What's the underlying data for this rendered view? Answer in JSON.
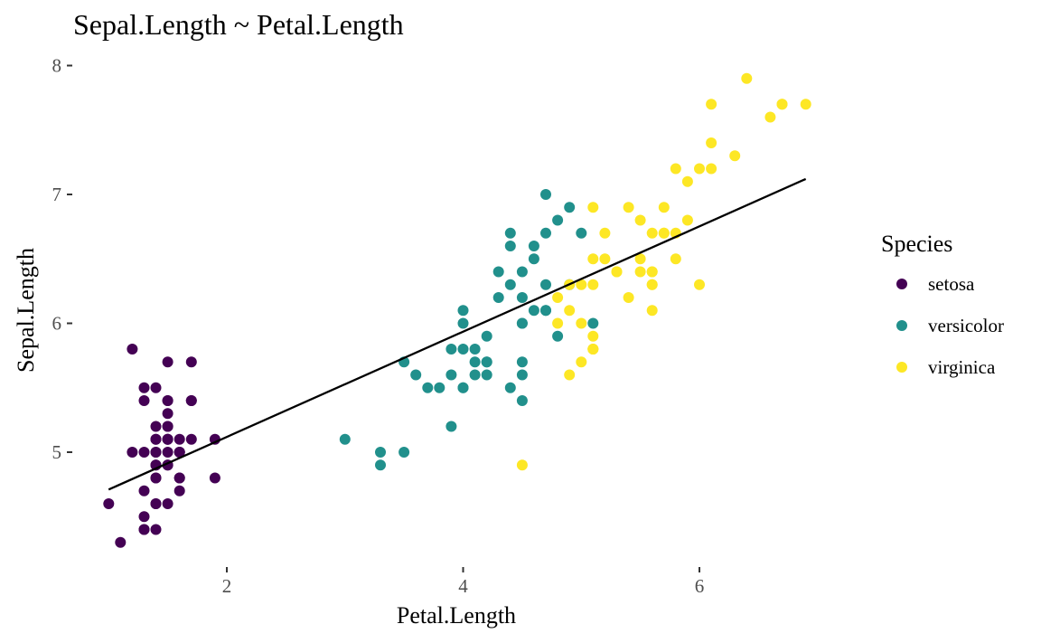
{
  "chart_data": {
    "type": "scatter",
    "title": "Sepal.Length ~ Petal.Length",
    "xlabel": "Petal.Length",
    "ylabel": "Sepal.Length",
    "xticks": [
      2,
      4,
      6
    ],
    "yticks": [
      5,
      6,
      7,
      8
    ],
    "grid": false,
    "legend": {
      "title": "Species",
      "position": "right",
      "entries": [
        {
          "name": "setosa",
          "color": "#440154"
        },
        {
          "name": "versicolor",
          "color": "#21908C"
        },
        {
          "name": "virginica",
          "color": "#FDE725"
        }
      ]
    },
    "series": [
      {
        "name": "setosa",
        "color": "#440154",
        "points": [
          [
            1.4,
            5.1
          ],
          [
            1.4,
            4.9
          ],
          [
            1.3,
            4.7
          ],
          [
            1.5,
            4.6
          ],
          [
            1.4,
            5.0
          ],
          [
            1.7,
            5.4
          ],
          [
            1.4,
            4.6
          ],
          [
            1.5,
            5.0
          ],
          [
            1.4,
            4.4
          ],
          [
            1.5,
            4.9
          ],
          [
            1.5,
            5.4
          ],
          [
            1.6,
            4.8
          ],
          [
            1.4,
            4.8
          ],
          [
            1.1,
            4.3
          ],
          [
            1.2,
            5.8
          ],
          [
            1.5,
            5.7
          ],
          [
            1.3,
            5.4
          ],
          [
            1.4,
            5.1
          ],
          [
            1.7,
            5.7
          ],
          [
            1.5,
            5.1
          ],
          [
            1.7,
            5.4
          ],
          [
            1.5,
            5.1
          ],
          [
            1.0,
            4.6
          ],
          [
            1.7,
            5.1
          ],
          [
            1.9,
            4.8
          ],
          [
            1.6,
            5.0
          ],
          [
            1.6,
            5.0
          ],
          [
            1.5,
            5.2
          ],
          [
            1.4,
            5.2
          ],
          [
            1.6,
            4.7
          ],
          [
            1.6,
            4.8
          ],
          [
            1.5,
            5.4
          ],
          [
            1.5,
            5.2
          ],
          [
            1.4,
            5.5
          ],
          [
            1.5,
            4.9
          ],
          [
            1.2,
            5.0
          ],
          [
            1.3,
            5.5
          ],
          [
            1.4,
            4.9
          ],
          [
            1.3,
            4.4
          ],
          [
            1.5,
            5.1
          ],
          [
            1.3,
            5.0
          ],
          [
            1.3,
            4.5
          ],
          [
            1.3,
            4.4
          ],
          [
            1.6,
            5.0
          ],
          [
            1.9,
            5.1
          ],
          [
            1.4,
            4.8
          ],
          [
            1.6,
            5.1
          ],
          [
            1.4,
            4.6
          ],
          [
            1.5,
            5.3
          ],
          [
            1.4,
            5.0
          ]
        ]
      },
      {
        "name": "versicolor",
        "color": "#21908C",
        "points": [
          [
            4.7,
            7.0
          ],
          [
            4.5,
            6.4
          ],
          [
            4.9,
            6.9
          ],
          [
            4.0,
            5.5
          ],
          [
            4.6,
            6.5
          ],
          [
            4.5,
            5.7
          ],
          [
            4.7,
            6.3
          ],
          [
            3.3,
            4.9
          ],
          [
            4.6,
            6.6
          ],
          [
            3.9,
            5.2
          ],
          [
            3.5,
            5.0
          ],
          [
            4.2,
            5.9
          ],
          [
            4.0,
            6.0
          ],
          [
            4.7,
            6.1
          ],
          [
            3.6,
            5.6
          ],
          [
            4.4,
            6.7
          ],
          [
            4.5,
            5.6
          ],
          [
            4.1,
            5.8
          ],
          [
            4.5,
            6.2
          ],
          [
            3.9,
            5.6
          ],
          [
            4.8,
            5.9
          ],
          [
            4.0,
            6.1
          ],
          [
            4.9,
            6.3
          ],
          [
            4.7,
            6.1
          ],
          [
            4.3,
            6.4
          ],
          [
            4.4,
            6.6
          ],
          [
            4.8,
            6.8
          ],
          [
            5.0,
            6.7
          ],
          [
            4.5,
            6.0
          ],
          [
            3.5,
            5.7
          ],
          [
            3.8,
            5.5
          ],
          [
            3.7,
            5.5
          ],
          [
            3.9,
            5.8
          ],
          [
            5.1,
            6.0
          ],
          [
            4.5,
            5.4
          ],
          [
            4.5,
            6.0
          ],
          [
            4.7,
            6.7
          ],
          [
            4.4,
            6.3
          ],
          [
            4.1,
            5.6
          ],
          [
            4.0,
            5.5
          ],
          [
            4.4,
            5.5
          ],
          [
            4.6,
            6.1
          ],
          [
            4.0,
            5.8
          ],
          [
            3.3,
            5.0
          ],
          [
            4.2,
            5.6
          ],
          [
            4.2,
            5.7
          ],
          [
            4.2,
            5.7
          ],
          [
            4.3,
            6.2
          ],
          [
            3.0,
            5.1
          ],
          [
            4.1,
            5.7
          ]
        ]
      },
      {
        "name": "virginica",
        "color": "#FDE725",
        "points": [
          [
            6.0,
            6.3
          ],
          [
            5.1,
            5.8
          ],
          [
            5.9,
            7.1
          ],
          [
            5.6,
            6.3
          ],
          [
            5.8,
            6.5
          ],
          [
            6.6,
            7.6
          ],
          [
            4.5,
            4.9
          ],
          [
            6.3,
            7.3
          ],
          [
            5.8,
            6.7
          ],
          [
            6.1,
            7.2
          ],
          [
            5.1,
            6.5
          ],
          [
            5.3,
            6.4
          ],
          [
            5.5,
            6.8
          ],
          [
            5.0,
            5.7
          ],
          [
            5.1,
            5.8
          ],
          [
            5.3,
            6.4
          ],
          [
            5.5,
            6.5
          ],
          [
            6.7,
            7.7
          ],
          [
            6.9,
            7.7
          ],
          [
            5.0,
            6.0
          ],
          [
            5.7,
            6.9
          ],
          [
            4.9,
            5.6
          ],
          [
            6.7,
            7.7
          ],
          [
            4.9,
            6.3
          ],
          [
            5.7,
            6.7
          ],
          [
            6.0,
            7.2
          ],
          [
            4.8,
            6.2
          ],
          [
            4.9,
            6.1
          ],
          [
            5.6,
            6.4
          ],
          [
            5.8,
            7.2
          ],
          [
            6.1,
            7.4
          ],
          [
            6.4,
            7.9
          ],
          [
            5.6,
            6.4
          ],
          [
            5.1,
            6.3
          ],
          [
            5.6,
            6.1
          ],
          [
            6.1,
            7.7
          ],
          [
            5.6,
            6.3
          ],
          [
            5.5,
            6.4
          ],
          [
            4.8,
            6.0
          ],
          [
            5.4,
            6.9
          ],
          [
            5.6,
            6.7
          ],
          [
            5.1,
            6.9
          ],
          [
            5.1,
            5.8
          ],
          [
            5.9,
            6.8
          ],
          [
            5.7,
            6.7
          ],
          [
            5.2,
            6.7
          ],
          [
            5.0,
            6.3
          ],
          [
            5.2,
            6.5
          ],
          [
            5.4,
            6.2
          ],
          [
            5.1,
            5.9
          ]
        ]
      }
    ],
    "fit_line": {
      "x": [
        1.0,
        6.9
      ],
      "y": [
        4.71,
        7.12
      ]
    }
  }
}
